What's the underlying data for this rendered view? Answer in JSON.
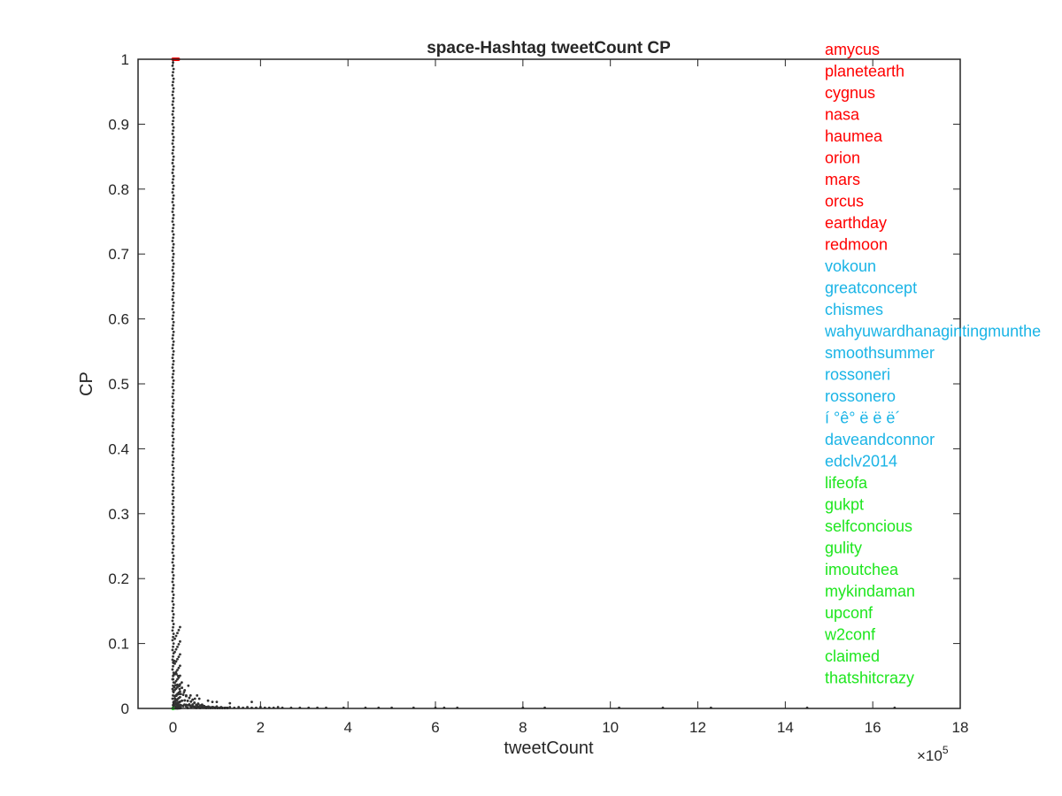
{
  "chart_data": {
    "type": "scatter",
    "title": "space-Hashtag tweetCount CP",
    "xlabel": "tweetCount",
    "ylabel": "CP",
    "x_exponent": "×10",
    "x_exponent_power": "5",
    "xlim": [
      -0.8,
      18
    ],
    "ylim": [
      0,
      1
    ],
    "xticks": [
      "0",
      "2",
      "4",
      "6",
      "8",
      "10",
      "12",
      "14",
      "16",
      "18"
    ],
    "yticks": [
      "0",
      "0.1",
      "0.2",
      "0.3",
      "0.4",
      "0.5",
      "0.6",
      "0.7",
      "0.8",
      "0.9",
      "1"
    ],
    "x_units_note": "x values in units of 10^5 tweets",
    "grid": false,
    "marker_color": "#333333",
    "label_colors": {
      "top": "#ff0000",
      "mid": "#1ab4e6",
      "low": "#1ee61e"
    },
    "series": [
      {
        "x": [
          0.02,
          0.03,
          0.04,
          0.05,
          0.03,
          0.06,
          0.08,
          0.1,
          0.12,
          0.15,
          0.05,
          0.07,
          0.09,
          0.11,
          0.14,
          0.18,
          0.22,
          0.26,
          0.3,
          0.35,
          0.4,
          0.45,
          0.5,
          0.55,
          0.6,
          0.7,
          0.8,
          0.9,
          1.0,
          1.1,
          1.2,
          1.3,
          1.4,
          1.5,
          1.6,
          1.7,
          1.8,
          1.9,
          2.0,
          2.1,
          2.2,
          2.3,
          2.4,
          2.5,
          2.7,
          2.9,
          3.1,
          3.3,
          3.5,
          3.9,
          4.4,
          4.7,
          5.0,
          5.5,
          6.0,
          6.2,
          6.5,
          8.0,
          8.5,
          10.2,
          11.2,
          12.3,
          14.5,
          16.5,
          0.3,
          0.5,
          0.8,
          1.0,
          1.3,
          1.8,
          0.15,
          0.25,
          0.4,
          0.6,
          0.9,
          0.12,
          0.2,
          0.35,
          0.55
        ],
        "y": [
          0.001,
          0.002,
          0.001,
          0.003,
          0.004,
          0.002,
          0.003,
          0.002,
          0.001,
          0.002,
          0.01,
          0.008,
          0.012,
          0.006,
          0.009,
          0.005,
          0.004,
          0.006,
          0.003,
          0.005,
          0.004,
          0.003,
          0.002,
          0.004,
          0.002,
          0.003,
          0.002,
          0.002,
          0.003,
          0.002,
          0.001,
          0.002,
          0.001,
          0.002,
          0.001,
          0.002,
          0.001,
          0.001,
          0.002,
          0.001,
          0.001,
          0.001,
          0.002,
          0.001,
          0.001,
          0.001,
          0.001,
          0.001,
          0.001,
          0.001,
          0.001,
          0.001,
          0.001,
          0.001,
          0.001,
          0.001,
          0.001,
          0.001,
          0.001,
          0.001,
          0.001,
          0.001,
          0.001,
          0.001,
          0.02,
          0.015,
          0.012,
          0.01,
          0.008,
          0.01,
          0.03,
          0.025,
          0.02,
          0.015,
          0.01,
          0.05,
          0.04,
          0.035,
          0.02
        ]
      }
    ],
    "labels": [
      {
        "text": "amycus",
        "group": "top"
      },
      {
        "text": "planetearth",
        "group": "top"
      },
      {
        "text": "cygnus",
        "group": "top"
      },
      {
        "text": "nasa",
        "group": "top"
      },
      {
        "text": "haumea",
        "group": "top"
      },
      {
        "text": "orion",
        "group": "top"
      },
      {
        "text": "mars",
        "group": "top"
      },
      {
        "text": "orcus",
        "group": "top"
      },
      {
        "text": "earthday",
        "group": "top"
      },
      {
        "text": "redmoon",
        "group": "top"
      },
      {
        "text": "vokoun",
        "group": "mid"
      },
      {
        "text": "greatconcept",
        "group": "mid"
      },
      {
        "text": "chismes",
        "group": "mid"
      },
      {
        "text": "wahyuwardhanagintingmunthe",
        "group": "mid"
      },
      {
        "text": "smoothsummer",
        "group": "mid"
      },
      {
        "text": "rossoneri",
        "group": "mid"
      },
      {
        "text": "rossonero",
        "group": "mid"
      },
      {
        "text": "í   °ê°   ë      ë      ë´",
        "group": "mid"
      },
      {
        "text": "daveandconnor",
        "group": "mid"
      },
      {
        "text": "edclv2014",
        "group": "mid"
      },
      {
        "text": "lifeofa",
        "group": "low"
      },
      {
        "text": "gukpt",
        "group": "low"
      },
      {
        "text": "selfconcious",
        "group": "low"
      },
      {
        "text": "gulity",
        "group": "low"
      },
      {
        "text": "imoutchea",
        "group": "low"
      },
      {
        "text": "mykindaman",
        "group": "low"
      },
      {
        "text": "upconf",
        "group": "low"
      },
      {
        "text": "w2conf",
        "group": "low"
      },
      {
        "text": "claimed",
        "group": "low"
      },
      {
        "text": "thatshitcrazy",
        "group": "low"
      }
    ]
  }
}
